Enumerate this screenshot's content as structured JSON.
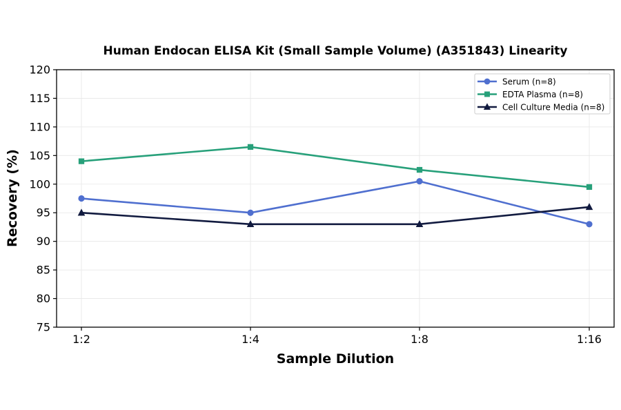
{
  "chart_data": {
    "type": "line",
    "title": "Human Endocan ELISA Kit (Small Sample Volume) (A351843) Linearity",
    "xlabel": "Sample Dilution",
    "ylabel": "Recovery (%)",
    "categories": [
      "1:2",
      "1:4",
      "1:8",
      "1:16"
    ],
    "ylim": [
      75,
      120
    ],
    "yticks": [
      75,
      80,
      85,
      90,
      95,
      100,
      105,
      110,
      115,
      120
    ],
    "grid": true,
    "legend_position": "top-right",
    "series": [
      {
        "name": "Serum (n=8)",
        "values": [
          97.5,
          95,
          100.5,
          93
        ],
        "color": "#4f6fcf",
        "marker": "circle"
      },
      {
        "name": "EDTA Plasma (n=8)",
        "values": [
          104,
          106.5,
          102.5,
          99.5
        ],
        "color": "#27a07a",
        "marker": "square"
      },
      {
        "name": "Cell Culture Media (n=8)",
        "values": [
          95,
          93,
          93,
          96
        ],
        "color": "#111a3f",
        "marker": "triangle"
      }
    ]
  }
}
